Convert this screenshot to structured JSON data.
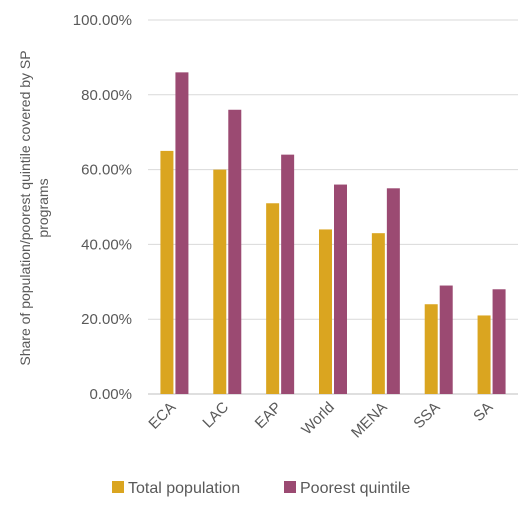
{
  "chart_data": {
    "type": "bar",
    "categories": [
      "ECA",
      "LAC",
      "EAP",
      "World",
      "MENA",
      "SSA",
      "SA"
    ],
    "series": [
      {
        "name": "Total population",
        "values": [
          0.65,
          0.6,
          0.51,
          0.44,
          0.43,
          0.24,
          0.21
        ],
        "color": "#DAA520"
      },
      {
        "name": "Poorest quintile",
        "values": [
          0.86,
          0.76,
          0.64,
          0.56,
          0.55,
          0.29,
          0.28
        ],
        "color": "#9B4A72"
      }
    ],
    "ylabel": "Share of population/poorest quintile covered by SP programs",
    "ylabel_lines": [
      "Share of population/poorest quintile covered by SP",
      "programs"
    ],
    "ylim": [
      0,
      1
    ],
    "yticks": [
      0,
      0.2,
      0.4,
      0.6,
      0.8,
      1.0
    ],
    "ytick_labels": [
      "0.00%",
      "20.00%",
      "40.00%",
      "60.00%",
      "80.00%",
      "100.00%"
    ],
    "grid": true,
    "legend_position": "bottom"
  }
}
